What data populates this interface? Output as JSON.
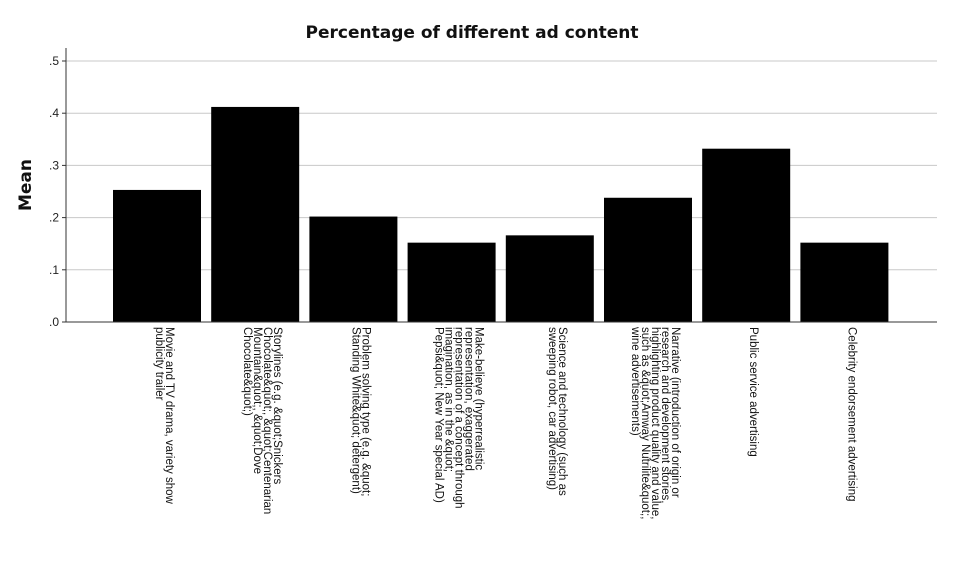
{
  "chart_data": {
    "type": "bar",
    "title": "Percentage of different ad content",
    "xlabel": "",
    "ylabel": "Mean",
    "ylim": [
      0,
      0.5
    ],
    "yticks": [
      ".0",
      ".1",
      ".2",
      ".3",
      ".4",
      ".5"
    ],
    "grid": true,
    "bar_color": "#000000",
    "grid_color": "#c8c8c8",
    "categories": [
      [
        "Movie and TV drama, variety show",
        "publicity trailer"
      ],
      [
        "Storylines (e.g. &quot;Snickers",
        "Chocolate&quot;, &quot;Centenarian",
        "Mountain&quot;, &quot;Dove",
        "Chocolate&quot;)"
      ],
      [
        "Problem solving type (e.g. &quot;",
        "Standing White&quot; detergent)"
      ],
      [
        "Make-believe (hyperrealistic",
        "representation, exaggerated",
        "representation of a concept through",
        "imagination, as in the &quot;",
        "Pepsi&quot; New Year special AD)"
      ],
      [
        "Science and technology (such as",
        "sweeping robot, car advertising)"
      ],
      [
        "Narrative (introduction of origin or",
        "research and development stories,",
        "highlighting product quality and value,",
        "such as &quot;Amway Nutrilite&quot;,",
        "wine advertisements)"
      ],
      [
        "Public service advertising"
      ],
      [
        "Celebrity endorsement advertising"
      ]
    ],
    "values": [
      0.253,
      0.412,
      0.202,
      0.152,
      0.166,
      0.238,
      0.332,
      0.152
    ]
  }
}
